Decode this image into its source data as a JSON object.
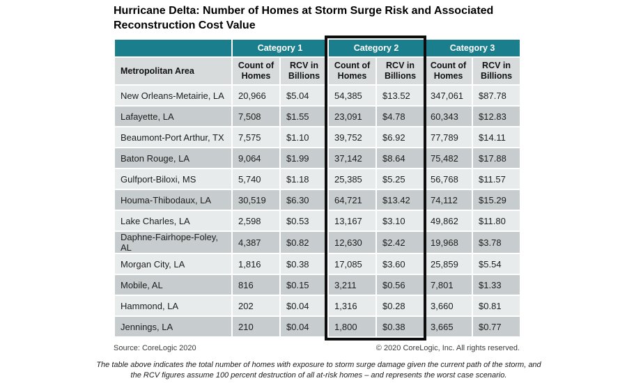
{
  "title": "Hurricane Delta: Number of Homes at Storm Surge Risk and Associated Reconstruction Cost Value",
  "colors": {
    "teal": "#1b7e8c",
    "header_gray": "#d7dbdb",
    "row_light": "#e8ebeb",
    "row_dark": "#c7cdce",
    "highlight_border": "#0d0d0d"
  },
  "table": {
    "category_headers": [
      "Category 1",
      "Category 2",
      "Category 3"
    ],
    "highlighted_category": "Category 2",
    "area_header": "Metropolitan Area",
    "sub_headers": {
      "count": "Count of Homes",
      "rcv": "RCV in Billions"
    },
    "rows": [
      [
        "New Orleans-Metairie, LA",
        "20,966",
        "$5.04",
        "54,385",
        "$13.52",
        "347,061",
        "$87.78"
      ],
      [
        "Lafayette, LA",
        "7,508",
        "$1.55",
        "23,091",
        "$4.78",
        "60,343",
        "$12.83"
      ],
      [
        "Beaumont-Port Arthur, TX",
        "7,575",
        "$1.10",
        "39,752",
        "$6.92",
        "77,789",
        "$14.11"
      ],
      [
        "Baton Rouge, LA",
        "9,064",
        "$1.99",
        "37,142",
        "$8.64",
        "75,482",
        "$17.88"
      ],
      [
        "Gulfport-Biloxi, MS",
        "5,740",
        "$1.18",
        "25,385",
        "$5.25",
        "56,768",
        "$11.57"
      ],
      [
        "Houma-Thibodaux, LA",
        "30,519",
        "$6.30",
        "64,721",
        "$13.42",
        "74,112",
        "$15.29"
      ],
      [
        "Lake Charles, LA",
        "2,598",
        "$0.53",
        "13,167",
        "$3.10",
        "49,862",
        "$11.80"
      ],
      [
        "Daphne-Fairhope-Foley, AL",
        "4,387",
        "$0.82",
        "12,630",
        "$2.42",
        "19,968",
        "$3.78"
      ],
      [
        "Morgan City, LA",
        "1,816",
        "$0.38",
        "17,085",
        "$3.60",
        "25,859",
        "$5.54"
      ],
      [
        "Mobile, AL",
        "816",
        "$0.15",
        "3,211",
        "$0.56",
        "7,801",
        "$1.33"
      ],
      [
        "Hammond, LA",
        "202",
        "$0.04",
        "1,316",
        "$0.28",
        "3,660",
        "$0.81"
      ],
      [
        "Jennings, LA",
        "210",
        "$0.04",
        "1,800",
        "$0.38",
        "3,665",
        "$0.77"
      ]
    ]
  },
  "footer": {
    "source": "Source: CoreLogic 2020",
    "copyright": "© 2020 CoreLogic, Inc. All rights reserved.",
    "note": "The table above indicates the total number of homes with exposure to storm surge damage given the current path of the storm, and the RCV figures assume 100 percent destruction of all at-risk homes – and represents the worst case scenario."
  },
  "chart_data": {
    "type": "table",
    "title": "Hurricane Delta: Number of Homes at Storm Surge Risk and Associated Reconstruction Cost Value",
    "column_groups": [
      "Category 1",
      "Category 2",
      "Category 3"
    ],
    "columns": [
      "Metropolitan Area",
      "Category 1 Count of Homes",
      "Category 1 RCV in Billions",
      "Category 2 Count of Homes",
      "Category 2 RCV in Billions",
      "Category 3 Count of Homes",
      "Category 3 RCV in Billions"
    ],
    "highlighted_group": "Category 2",
    "rows": [
      [
        "New Orleans-Metairie, LA",
        20966,
        5.04,
        54385,
        13.52,
        347061,
        87.78
      ],
      [
        "Lafayette, LA",
        7508,
        1.55,
        23091,
        4.78,
        60343,
        12.83
      ],
      [
        "Beaumont-Port Arthur, TX",
        7575,
        1.1,
        39752,
        6.92,
        77789,
        14.11
      ],
      [
        "Baton Rouge, LA",
        9064,
        1.99,
        37142,
        8.64,
        75482,
        17.88
      ],
      [
        "Gulfport-Biloxi, MS",
        5740,
        1.18,
        25385,
        5.25,
        56768,
        11.57
      ],
      [
        "Houma-Thibodaux, LA",
        30519,
        6.3,
        64721,
        13.42,
        74112,
        15.29
      ],
      [
        "Lake Charles, LA",
        2598,
        0.53,
        13167,
        3.1,
        49862,
        11.8
      ],
      [
        "Daphne-Fairhope-Foley, AL",
        4387,
        0.82,
        12630,
        2.42,
        19968,
        3.78
      ],
      [
        "Morgan City, LA",
        1816,
        0.38,
        17085,
        3.6,
        25859,
        5.54
      ],
      [
        "Mobile, AL",
        816,
        0.15,
        3211,
        0.56,
        7801,
        1.33
      ],
      [
        "Hammond, LA",
        202,
        0.04,
        1316,
        0.28,
        3660,
        0.81
      ],
      [
        "Jennings, LA",
        210,
        0.04,
        1800,
        0.38,
        3665,
        0.77
      ]
    ],
    "source": "CoreLogic 2020"
  }
}
